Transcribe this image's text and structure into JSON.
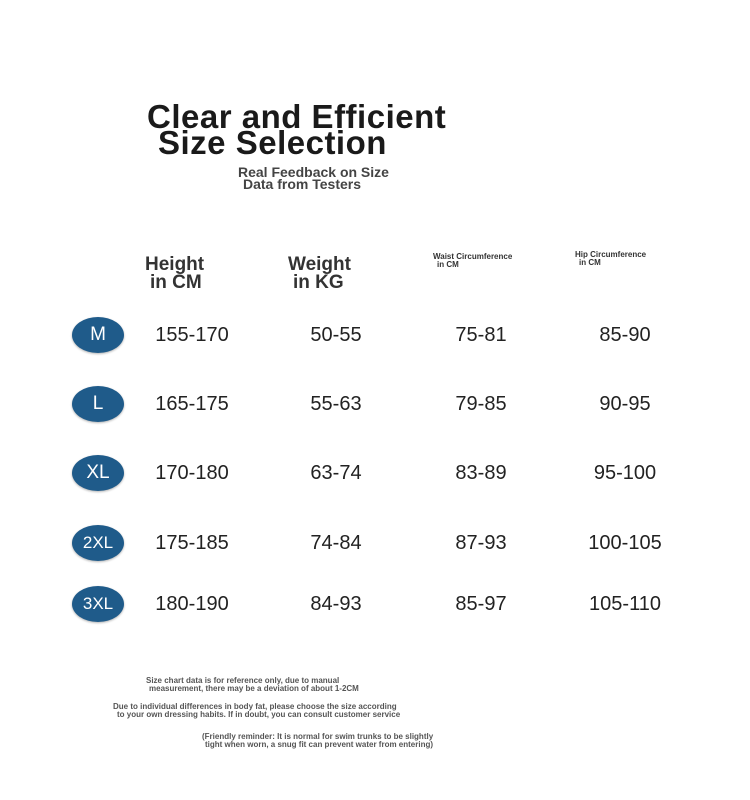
{
  "header": {
    "title": [
      "Clear and Efficient",
      "Size Selection"
    ],
    "subtitle": [
      "Real Feedback on Size",
      "Data from Testers"
    ]
  },
  "table": {
    "columns": [
      [
        "Height",
        "in CM"
      ],
      [
        "Weight",
        "in KG"
      ],
      [
        "Waist Circumference",
        "in CM"
      ],
      [
        "Hip Circumference",
        "in CM"
      ]
    ],
    "rows": [
      [
        "M",
        "155-170",
        "50-55",
        "75-81",
        "85-90"
      ],
      [
        "L",
        "165-175",
        "55-63",
        "79-85",
        "90-95"
      ],
      [
        "XL",
        "170-180",
        "63-74",
        "83-89",
        "95-100"
      ],
      [
        "2XL",
        "175-185",
        "74-84",
        "87-93",
        "100-105"
      ],
      [
        "3XL",
        "180-190",
        "84-93",
        "85-97",
        "105-110"
      ]
    ]
  },
  "notes": [
    [
      "Size chart data is for reference only, due to manual",
      "measurement, there may be a deviation of about 1-2CM"
    ],
    [
      "Due to individual differences in body fat, please choose the size according",
      "to your own dressing habits. If in doubt, you can consult customer service"
    ],
    [
      "(Friendly reminder: It is normal for swim trunks to be slightly",
      "tight when worn, a snug fit can prevent water from entering)"
    ]
  ]
}
